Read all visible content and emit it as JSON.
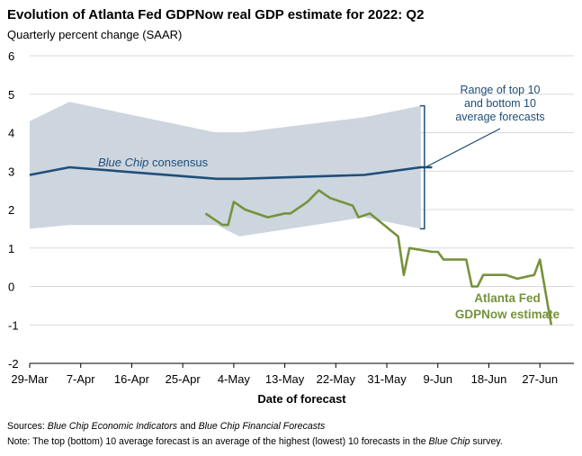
{
  "title": "Evolution of Atlanta Fed GDPNow real GDP estimate for 2022: Q2",
  "subtitle": "Quarterly percent change (SAAR)",
  "chart_data": {
    "type": "line",
    "xlabel": "Date of forecast",
    "ylabel": "",
    "ylim": [
      -2,
      6
    ],
    "yticks": [
      "6",
      "5",
      "4",
      "3",
      "2",
      "1",
      "0",
      "-1",
      "-2"
    ],
    "xlim": [
      "2022-03-29",
      "2022-07-03"
    ],
    "xticks": [
      "29-Mar",
      "7-Apr",
      "16-Apr",
      "25-Apr",
      "4-May",
      "13-May",
      "22-May",
      "31-May",
      "9-Jun",
      "18-Jun",
      "27-Jun"
    ],
    "xtick_dates": [
      "2022-03-29",
      "2022-04-07",
      "2022-04-16",
      "2022-04-25",
      "2022-05-04",
      "2022-05-13",
      "2022-05-22",
      "2022-05-31",
      "2022-06-09",
      "2022-06-18",
      "2022-06-27"
    ],
    "grid": "horizontal",
    "band": {
      "name": "Range of top 10 and bottom 10 average forecasts",
      "color": "#cdd5de",
      "points": [
        {
          "x": "2022-03-29",
          "low": 1.5,
          "high": 4.3
        },
        {
          "x": "2022-04-05",
          "low": 1.6,
          "high": 4.8
        },
        {
          "x": "2022-05-01",
          "low": 1.6,
          "high": 4.0
        },
        {
          "x": "2022-05-05",
          "low": 1.3,
          "high": 4.0
        },
        {
          "x": "2022-05-27",
          "low": 1.8,
          "high": 4.4
        },
        {
          "x": "2022-06-06",
          "low": 1.5,
          "high": 4.7
        }
      ]
    },
    "series": [
      {
        "name": "Blue Chip consensus",
        "color": "#1f4e79",
        "points": [
          {
            "x": "2022-03-29",
            "y": 2.9
          },
          {
            "x": "2022-04-05",
            "y": 3.1
          },
          {
            "x": "2022-05-01",
            "y": 2.8
          },
          {
            "x": "2022-05-05",
            "y": 2.8
          },
          {
            "x": "2022-05-27",
            "y": 2.9
          },
          {
            "x": "2022-06-06",
            "y": 3.1
          },
          {
            "x": "2022-06-08",
            "y": 3.1
          }
        ]
      },
      {
        "name": "Atlanta Fed GDPNow estimate",
        "color": "#76923c",
        "points": [
          {
            "x": "2022-04-29",
            "y": 1.9
          },
          {
            "x": "2022-05-01",
            "y": 1.7
          },
          {
            "x": "2022-05-02",
            "y": 1.6
          },
          {
            "x": "2022-05-03",
            "y": 1.6
          },
          {
            "x": "2022-05-04",
            "y": 2.2
          },
          {
            "x": "2022-05-06",
            "y": 2.0
          },
          {
            "x": "2022-05-10",
            "y": 1.8
          },
          {
            "x": "2022-05-13",
            "y": 1.9
          },
          {
            "x": "2022-05-14",
            "y": 1.9
          },
          {
            "x": "2022-05-17",
            "y": 2.2
          },
          {
            "x": "2022-05-19",
            "y": 2.5
          },
          {
            "x": "2022-05-20",
            "y": 2.4
          },
          {
            "x": "2022-05-21",
            "y": 2.3
          },
          {
            "x": "2022-05-25",
            "y": 2.1
          },
          {
            "x": "2022-05-26",
            "y": 1.8
          },
          {
            "x": "2022-05-28",
            "y": 1.9
          },
          {
            "x": "2022-06-02",
            "y": 1.3
          },
          {
            "x": "2022-06-03",
            "y": 0.3
          },
          {
            "x": "2022-06-04",
            "y": 1.0
          },
          {
            "x": "2022-06-08",
            "y": 0.9
          },
          {
            "x": "2022-06-09",
            "y": 0.9
          },
          {
            "x": "2022-06-10",
            "y": 0.7
          },
          {
            "x": "2022-06-14",
            "y": 0.7
          },
          {
            "x": "2022-06-15",
            "y": 0.0
          },
          {
            "x": "2022-06-16",
            "y": 0.0
          },
          {
            "x": "2022-06-17",
            "y": 0.3
          },
          {
            "x": "2022-06-21",
            "y": 0.3
          },
          {
            "x": "2022-06-23",
            "y": 0.2
          },
          {
            "x": "2022-06-26",
            "y": 0.3
          },
          {
            "x": "2022-06-27",
            "y": 0.7
          },
          {
            "x": "2022-06-29",
            "y": -1.0
          }
        ]
      }
    ],
    "annotations": {
      "band_label": [
        "Range of top 10",
        "and bottom 10",
        "average forecasts"
      ],
      "bluechip_label_italic": "Blue Chip",
      "bluechip_label_rest": " consensus",
      "gdpnow_label": [
        "Atlanta Fed",
        "GDPNow estimate"
      ]
    }
  },
  "footer": {
    "sources_prefix": "Sources: ",
    "sources_italic_1": "Blue Chip Economic Indicators",
    "sources_and": " and ",
    "sources_italic_2": "Blue Chip Financial Forecasts",
    "note_prefix": "Note: ",
    "note_text": "The top (bottom) 10 average forecast is an average of the highest (lowest) 10 forecasts in the ",
    "note_italic": "Blue Chip",
    "note_suffix": " survey."
  }
}
